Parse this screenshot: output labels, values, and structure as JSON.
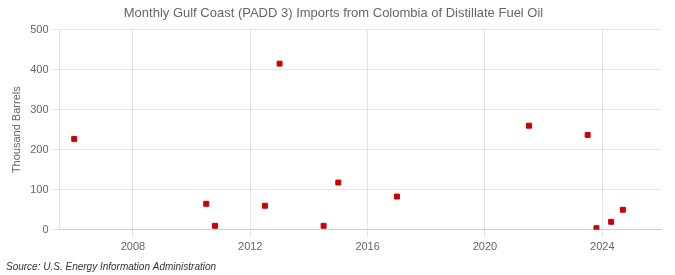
{
  "chart_data": {
    "type": "scatter",
    "title": "Monthly Gulf Coast (PADD 3) Imports from Colombia of Distillate Fuel Oil",
    "ylabel": "Thousand Barrels",
    "source": "Source: U.S. Energy Information Administration",
    "x": [
      2006.0,
      2010.5,
      2010.8,
      2012.5,
      2013.0,
      2014.5,
      2015.0,
      2017.0,
      2021.5,
      2023.5,
      2023.8,
      2024.3,
      2024.7
    ],
    "values": [
      227,
      65,
      10,
      60,
      415,
      10,
      118,
      83,
      260,
      237,
      4,
      20,
      50
    ],
    "color": "#cc0000",
    "marker": "square",
    "xlim": [
      2005.5,
      2026
    ],
    "xticks": [
      2008,
      2012,
      2016,
      2020,
      2024
    ],
    "ylim": [
      0,
      500
    ],
    "yticks": [
      0,
      100,
      200,
      300,
      400,
      500
    ],
    "grid": true
  }
}
